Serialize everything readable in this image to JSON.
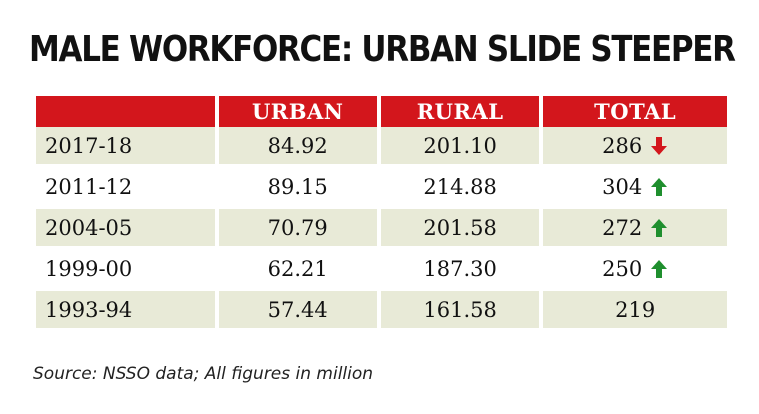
{
  "chart_data": {
    "type": "table",
    "title": "MALE WORKFORCE: URBAN SLIDE STEEPER",
    "columns": [
      "",
      "URBAN",
      "RURAL",
      "TOTAL"
    ],
    "rows": [
      {
        "year": "2017-18",
        "urban": "84.92",
        "rural": "201.10",
        "total": "286",
        "trend": "down"
      },
      {
        "year": "2011-12",
        "urban": "89.15",
        "rural": "214.88",
        "total": "304",
        "trend": "up"
      },
      {
        "year": "2004-05",
        "urban": "70.79",
        "rural": "201.58",
        "total": "272",
        "trend": "up"
      },
      {
        "year": "1999-00",
        "urban": "62.21",
        "rural": "187.30",
        "total": "250",
        "trend": "up"
      },
      {
        "year": "1993-94",
        "urban": "57.44",
        "rural": "161.58",
        "total": "219",
        "trend": "none"
      }
    ],
    "source": "Source: NSSO data; All figures in million",
    "colors": {
      "header_bg": "#d3161c",
      "row_shade": "#e8ead7",
      "arrow_down": "#d3161c",
      "arrow_up": "#1f8f2e"
    }
  }
}
